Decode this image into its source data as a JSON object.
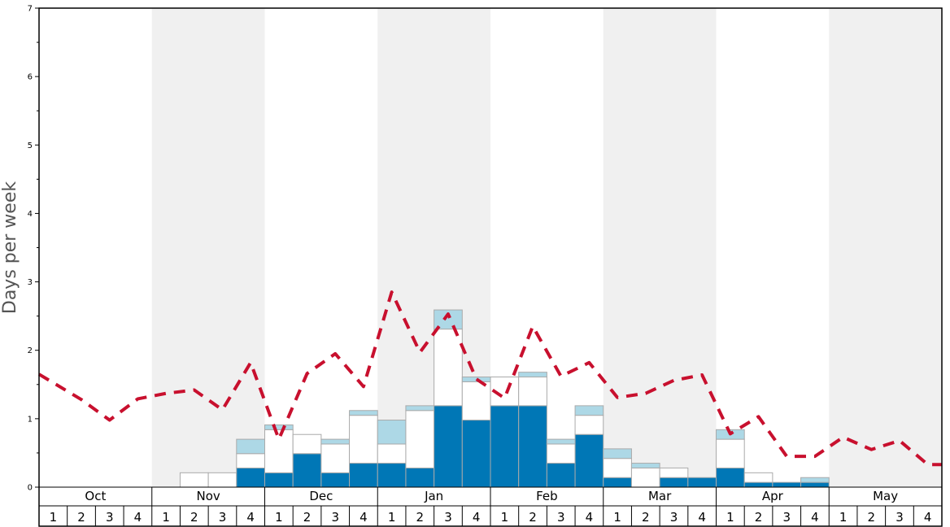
{
  "chart_data": {
    "type": "bar",
    "ylabel": "Days per week",
    "xlabel": "",
    "ylim": [
      0,
      7
    ],
    "yticks": [
      "0",
      "1",
      "2",
      "3",
      "4",
      "5",
      "6",
      "7"
    ],
    "months": [
      "Oct",
      "Nov",
      "Dec",
      "Jan",
      "Feb",
      "Mar",
      "Apr",
      "May"
    ],
    "weeks": [
      "1",
      "2",
      "3",
      "4"
    ],
    "categories": [
      "Oct 1",
      "Oct 2",
      "Oct 3",
      "Oct 4",
      "Nov 1",
      "Nov 2",
      "Nov 3",
      "Nov 4",
      "Dec 1",
      "Dec 2",
      "Dec 3",
      "Dec 4",
      "Jan 1",
      "Jan 2",
      "Jan 3",
      "Jan 4",
      "Feb 1",
      "Feb 2",
      "Feb 3",
      "Feb 4",
      "Mar 1",
      "Mar 2",
      "Mar 3",
      "Mar 4",
      "Apr 1",
      "Apr 2",
      "Apr 3",
      "Apr 4",
      "May 1",
      "May 2",
      "May 3",
      "May 4"
    ],
    "colors": {
      "dark": "#0077b6",
      "mid": "#ffffff",
      "light": "#add8e6",
      "line": "#c8102e",
      "shade": "#f0f0f0",
      "bar_edge": "#aaaaaa"
    },
    "series": [
      {
        "color_key": "dark",
        "values": [
          0,
          0,
          0,
          0,
          0,
          0,
          0,
          0.28,
          0.21,
          0.49,
          0.21,
          0.35,
          0.35,
          0.28,
          1.19,
          0.98,
          1.19,
          1.19,
          0.35,
          0.77,
          0.14,
          0,
          0.14,
          0.14,
          0.28,
          0.07,
          0.07,
          0.07,
          0,
          0,
          0,
          0
        ]
      },
      {
        "color_key": "mid",
        "values": [
          0,
          0,
          0,
          0,
          0,
          0.21,
          0.21,
          0.21,
          0.63,
          0.28,
          0.42,
          0.7,
          0.28,
          0.84,
          1.12,
          0.56,
          0.42,
          0.42,
          0.28,
          0.28,
          0.28,
          0.28,
          0.14,
          0,
          0.42,
          0.14,
          0,
          0,
          0,
          0,
          0,
          0
        ]
      },
      {
        "color_key": "light",
        "values": [
          0,
          0,
          0,
          0,
          0,
          0,
          0,
          0.21,
          0.07,
          0,
          0.07,
          0.07,
          0.35,
          0.07,
          0.28,
          0.07,
          0,
          0.07,
          0.07,
          0.14,
          0.14,
          0.07,
          0,
          0,
          0.14,
          0,
          0,
          0.07,
          0,
          0,
          0,
          0
        ]
      }
    ],
    "line": {
      "color_key": "line",
      "values": [
        1.65,
        1.28,
        0.98,
        1.29,
        1.37,
        1.42,
        1.13,
        1.82,
        0.7,
        1.66,
        1.95,
        1.47,
        2.85,
        1.97,
        2.53,
        1.58,
        1.3,
        2.35,
        1.62,
        1.82,
        1.31,
        1.37,
        1.56,
        1.64,
        0.78,
        1.03,
        0.45,
        0.45,
        0.73,
        0.55,
        0.68,
        0.33
      ]
    }
  }
}
